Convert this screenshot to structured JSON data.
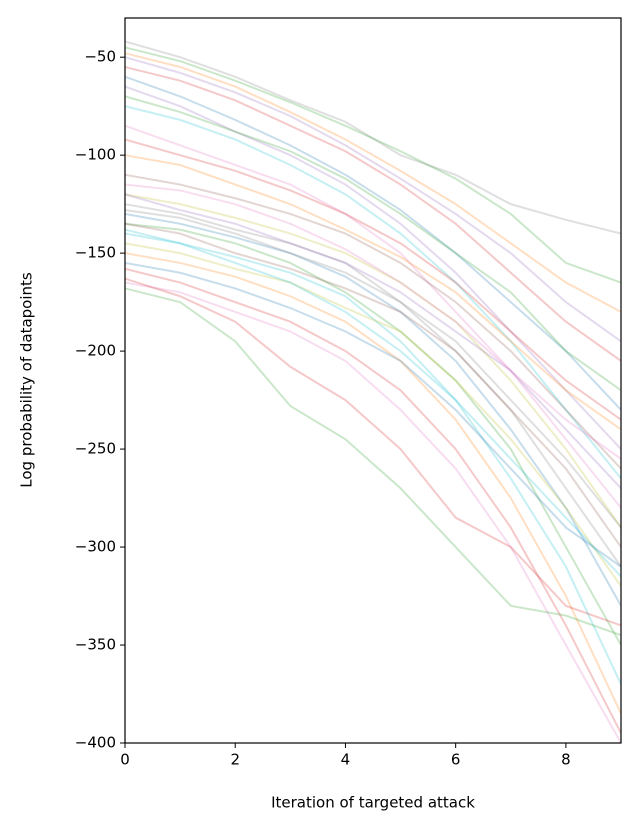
{
  "chart_data": {
    "type": "line",
    "xlabel": "Iteration of targeted attack",
    "ylabel": "Log probability of datapoints",
    "x": [
      0,
      1,
      2,
      3,
      4,
      5,
      6,
      7,
      8,
      9
    ],
    "xlim": [
      0,
      9
    ],
    "xticks": [
      0,
      2,
      4,
      6,
      8
    ],
    "ylim": [
      -400,
      -30
    ],
    "yticks": [
      {
        "value": -400,
        "label": "−400"
      },
      {
        "value": -350,
        "label": "−350"
      },
      {
        "value": -300,
        "label": "−300"
      },
      {
        "value": -250,
        "label": "−250"
      },
      {
        "value": -200,
        "label": "−200"
      },
      {
        "value": -150,
        "label": "−150"
      },
      {
        "value": -100,
        "label": "−100"
      },
      {
        "value": -50,
        "label": "−50"
      }
    ],
    "grid": false,
    "alpha": 0.25,
    "series": [
      {
        "color": "#7f7f7f",
        "values": [
          -42,
          -50,
          -60,
          -72,
          -83,
          -100,
          -110,
          -125,
          -133,
          -140
        ]
      },
      {
        "color": "#2ca02c",
        "values": [
          -45,
          -52,
          -62,
          -73,
          -85,
          -98,
          -112,
          -130,
          -155,
          -165
        ]
      },
      {
        "color": "#ff7f0e",
        "values": [
          -48,
          -55,
          -65,
          -78,
          -92,
          -108,
          -125,
          -145,
          -165,
          -180
        ]
      },
      {
        "color": "#d62728",
        "values": [
          -55,
          -62,
          -72,
          -85,
          -98,
          -115,
          -135,
          -160,
          -185,
          -205
        ]
      },
      {
        "color": "#1f77b4",
        "values": [
          -60,
          -70,
          -82,
          -95,
          -110,
          -128,
          -150,
          -175,
          -200,
          -230
        ]
      },
      {
        "color": "#9467bd",
        "values": [
          -65,
          -75,
          -88,
          -100,
          -115,
          -135,
          -160,
          -190,
          -220,
          -250
        ]
      },
      {
        "color": "#17becf",
        "values": [
          -75,
          -82,
          -92,
          -105,
          -120,
          -140,
          -165,
          -195,
          -230,
          -265
        ]
      },
      {
        "color": "#e377c2",
        "values": [
          -85,
          -95,
          -105,
          -115,
          -130,
          -150,
          -180,
          -210,
          -245,
          -280
        ]
      },
      {
        "color": "#8c564b",
        "values": [
          -110,
          -115,
          -122,
          -130,
          -140,
          -155,
          -175,
          -200,
          -230,
          -260
        ]
      },
      {
        "color": "#bcbd22",
        "values": [
          -120,
          -125,
          -132,
          -140,
          -150,
          -165,
          -185,
          -215,
          -250,
          -290
        ]
      },
      {
        "color": "#7f7f7f",
        "values": [
          -125,
          -130,
          -138,
          -145,
          -155,
          -175,
          -200,
          -230,
          -270,
          -310
        ]
      },
      {
        "color": "#1f77b4",
        "values": [
          -130,
          -135,
          -142,
          -150,
          -162,
          -180,
          -205,
          -240,
          -280,
          -330
        ]
      },
      {
        "color": "#2ca02c",
        "values": [
          -135,
          -138,
          -145,
          -155,
          -170,
          -190,
          -215,
          -250,
          -300,
          -350
        ]
      },
      {
        "color": "#17becf",
        "values": [
          -140,
          -145,
          -152,
          -160,
          -172,
          -195,
          -225,
          -265,
          -310,
          -370
        ]
      },
      {
        "color": "#ff7f0e",
        "values": [
          -150,
          -155,
          -162,
          -172,
          -185,
          -205,
          -235,
          -275,
          -325,
          -385
        ]
      },
      {
        "color": "#d62728",
        "values": [
          -158,
          -165,
          -175,
          -185,
          -200,
          -220,
          -250,
          -290,
          -340,
          -395
        ]
      },
      {
        "color": "#e377c2",
        "values": [
          -165,
          -170,
          -180,
          -190,
          -205,
          -230,
          -260,
          -300,
          -350,
          -400
        ]
      },
      {
        "color": "#2ca02c",
        "values": [
          -168,
          -175,
          -195,
          -228,
          -245,
          -270,
          -300,
          -330,
          -335,
          -345
        ]
      },
      {
        "color": "#d62728",
        "values": [
          -163,
          -172,
          -185,
          -208,
          -225,
          -250,
          -285,
          -300,
          -330,
          -340
        ]
      },
      {
        "color": "#9467bd",
        "values": [
          -120,
          -128,
          -135,
          -145,
          -155,
          -170,
          -190,
          -210,
          -240,
          -270
        ]
      },
      {
        "color": "#8c564b",
        "values": [
          -135,
          -140,
          -150,
          -158,
          -168,
          -180,
          -200,
          -230,
          -260,
          -300
        ]
      },
      {
        "color": "#bcbd22",
        "values": [
          -145,
          -150,
          -158,
          -165,
          -178,
          -190,
          -215,
          -245,
          -280,
          -320
        ]
      },
      {
        "color": "#7f7f7f",
        "values": [
          -128,
          -132,
          -140,
          -150,
          -160,
          -175,
          -195,
          -225,
          -255,
          -290
        ]
      },
      {
        "color": "#17becf",
        "values": [
          -138,
          -145,
          -155,
          -165,
          -180,
          -200,
          -225,
          -255,
          -285,
          -315
        ]
      },
      {
        "color": "#1f77b4",
        "values": [
          -155,
          -160,
          -168,
          -178,
          -190,
          -205,
          -230,
          -260,
          -290,
          -310
        ]
      },
      {
        "color": "#ff7f0e",
        "values": [
          -100,
          -105,
          -115,
          -125,
          -138,
          -152,
          -170,
          -195,
          -220,
          -240
        ]
      },
      {
        "color": "#e377c2",
        "values": [
          -115,
          -118,
          -125,
          -135,
          -148,
          -165,
          -185,
          -210,
          -235,
          -255
        ]
      },
      {
        "color": "#2ca02c",
        "values": [
          -70,
          -78,
          -88,
          -98,
          -112,
          -130,
          -150,
          -170,
          -200,
          -220
        ]
      },
      {
        "color": "#9467bd",
        "values": [
          -50,
          -58,
          -68,
          -80,
          -95,
          -112,
          -130,
          -150,
          -175,
          -195
        ]
      },
      {
        "color": "#d62728",
        "values": [
          -92,
          -100,
          -108,
          -118,
          -130,
          -145,
          -165,
          -190,
          -215,
          -235
        ]
      }
    ]
  }
}
